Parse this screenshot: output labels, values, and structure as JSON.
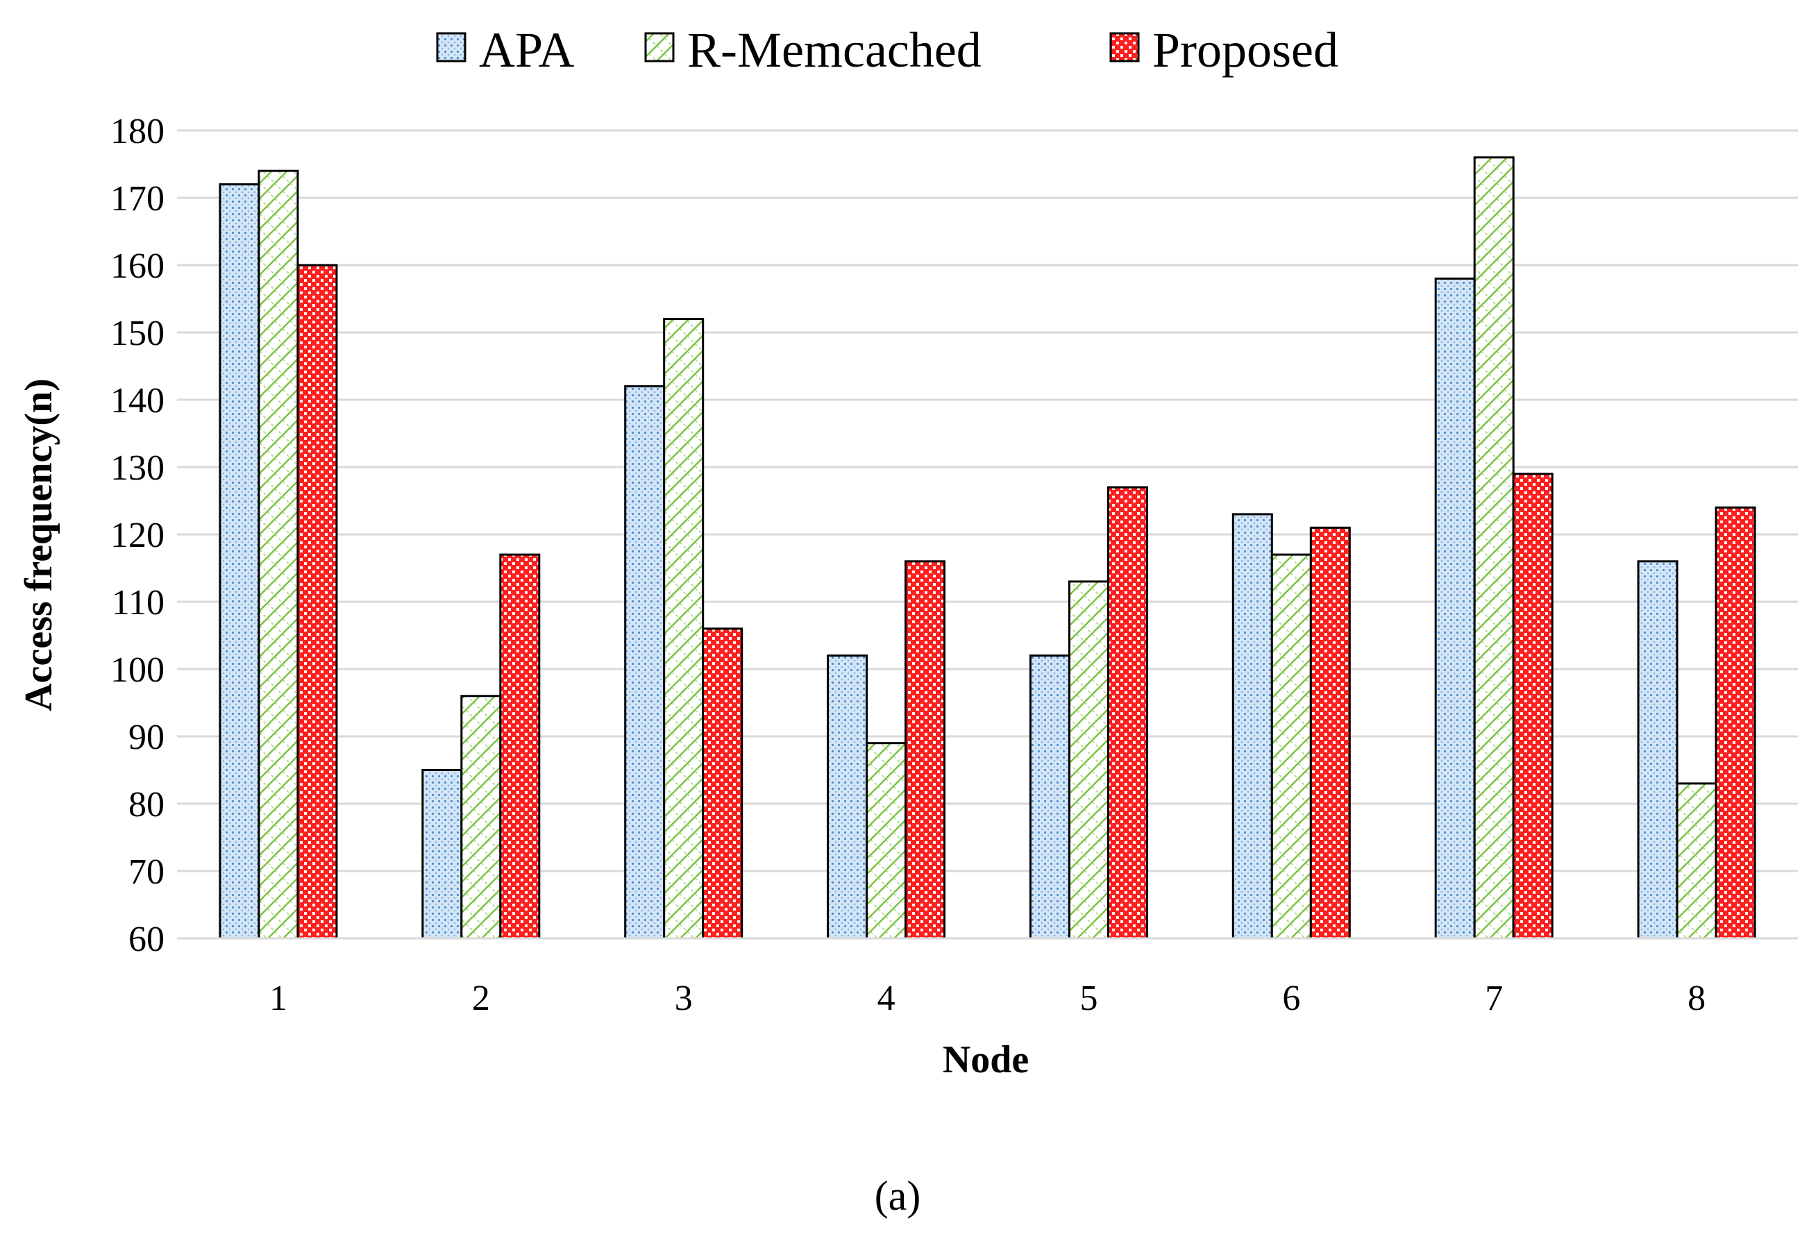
{
  "chart_data": {
    "type": "bar",
    "title": "",
    "xlabel": "Node",
    "ylabel": "Access frequency(n)",
    "ylim": [
      60,
      180
    ],
    "ytick_step": 10,
    "grid": true,
    "legend_position": "top",
    "categories": [
      "1",
      "2",
      "3",
      "4",
      "5",
      "6",
      "7",
      "8"
    ],
    "series": [
      {
        "name": "APA",
        "values": [
          172,
          85,
          142,
          102,
          102,
          123,
          158,
          116
        ],
        "color": "#bfd9f2",
        "pattern_color": "#4f8fd1",
        "pattern": "dots"
      },
      {
        "name": "R-Memcached",
        "values": [
          174,
          96,
          152,
          89,
          113,
          117,
          176,
          83
        ],
        "color": "#ffffff",
        "pattern_color": "#7cc242",
        "pattern": "diagonal-cross"
      },
      {
        "name": "Proposed",
        "values": [
          160,
          117,
          106,
          116,
          127,
          121,
          129,
          124
        ],
        "color": "#ff2a2a",
        "pattern_color": "#ffffff",
        "pattern": "checker"
      }
    ]
  },
  "caption": "(a)"
}
